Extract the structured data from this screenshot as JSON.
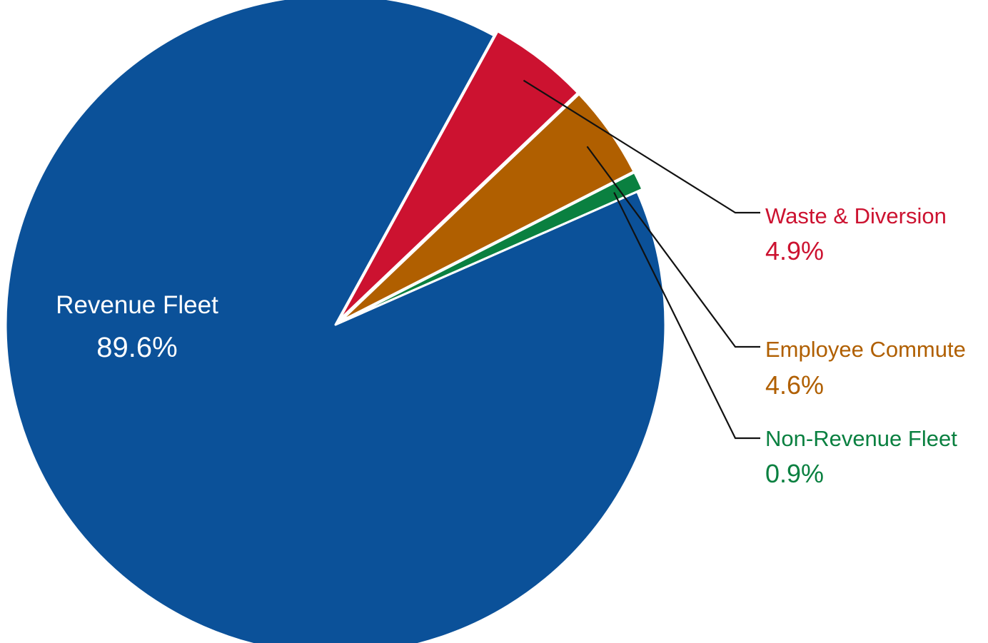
{
  "chart_data": {
    "type": "pie",
    "title": "",
    "slices": [
      {
        "label": "Revenue Fleet",
        "value": 89.6,
        "value_label": "89.6%",
        "color": "#0b5199",
        "label_color": "#ffffff"
      },
      {
        "label": "Waste & Diversion",
        "value": 4.9,
        "value_label": "4.9%",
        "color": "#cc1230",
        "label_color": "#cc1230"
      },
      {
        "label": "Employee Commute",
        "value": 4.6,
        "value_label": "4.6%",
        "color": "#b05f00",
        "label_color": "#b05f00"
      },
      {
        "label": "Non-Revenue Fleet",
        "value": 0.9,
        "value_label": "0.9%",
        "color": "#0a8040",
        "label_color": "#0a8040"
      }
    ],
    "legend": "none"
  }
}
